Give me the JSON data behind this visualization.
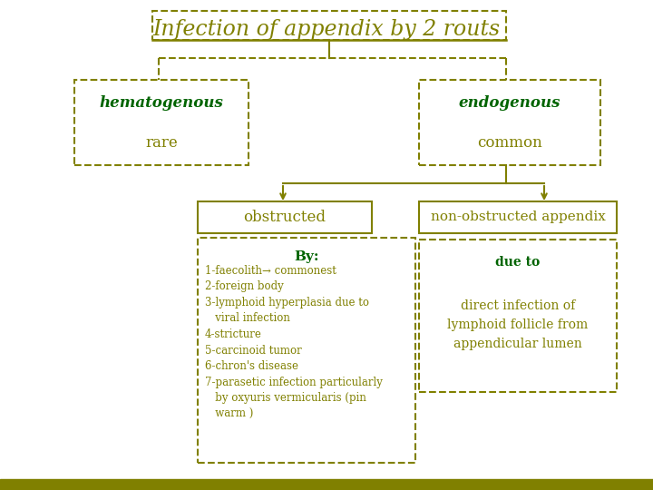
{
  "title": "Infection of appendix by 2 routs",
  "title_color": "#808000",
  "title_fontsize": 17,
  "bg_color": "#ffffff",
  "olive": "#808000",
  "dark_green": "#006400",
  "hematogenous_text": "hematogenous",
  "hematogenous_sub": "rare",
  "endogenous_text": "endogenous",
  "endogenous_sub": "common",
  "obstructed_text": "obstructed",
  "non_obstructed_text": "non-obstructed appendix",
  "by_text": "By:",
  "list_text": "1-faecolith→ commonest\n2-foreign body\n3-lymphoid hyperplasia due to\n   viral infection\n4-stricture\n5-carcinoid tumor\n6-chron's disease\n7-parasetic infection particularly\n   by oxyuris vermicularis (pin\n   warm )",
  "due_to_bold": "due to",
  "due_to_text": "direct infection of\nlymphoid follicle from\nappendicular lumen",
  "bottom_bar_color": "#808000",
  "bottom_bar_height": 12
}
